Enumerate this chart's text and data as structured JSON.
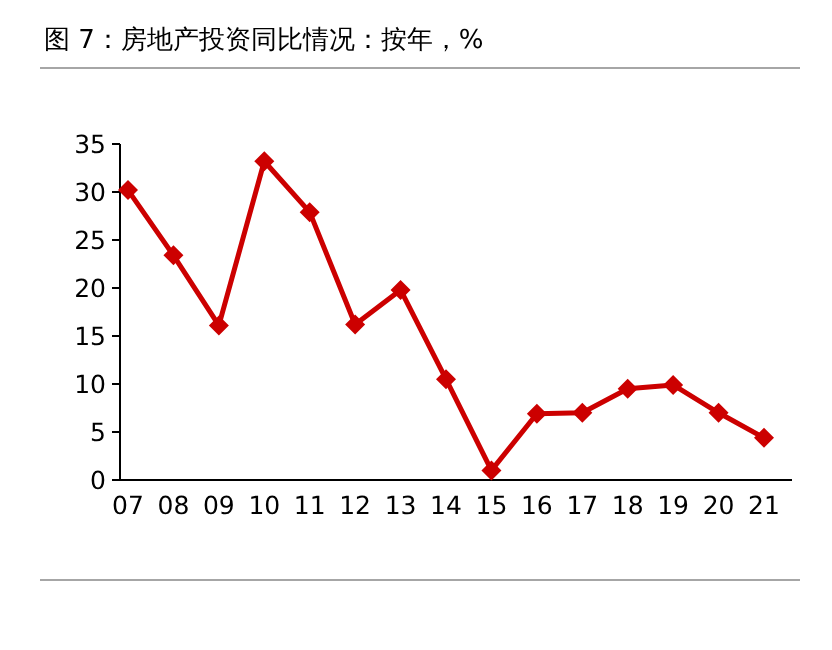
{
  "chart_data": {
    "type": "line",
    "title": "图 7：房地产投资同比情况：按年，%",
    "categories": [
      "07",
      "08",
      "09",
      "10",
      "11",
      "12",
      "13",
      "14",
      "15",
      "16",
      "17",
      "18",
      "19",
      "20",
      "21"
    ],
    "values": [
      30.2,
      23.4,
      16.1,
      33.2,
      27.9,
      16.2,
      19.8,
      10.5,
      1.0,
      6.9,
      7.0,
      9.5,
      9.9,
      7.0,
      4.4
    ],
    "color": "#cc0000",
    "ylim": [
      0,
      35
    ],
    "yticks": [
      0,
      5,
      10,
      15,
      20,
      25,
      30,
      35
    ],
    "marker": "diamond",
    "grid": false
  }
}
